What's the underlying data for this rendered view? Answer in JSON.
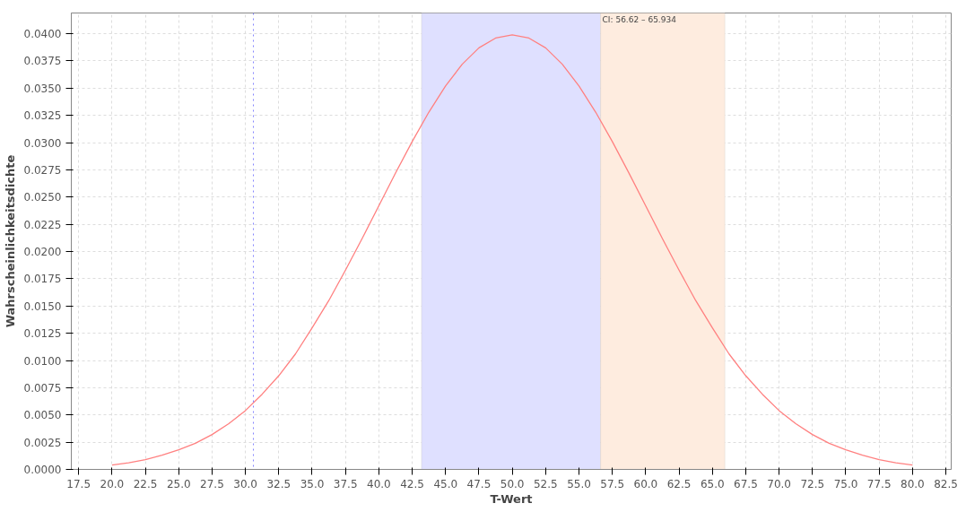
{
  "chart_data": {
    "type": "line",
    "xlabel": "T-Wert",
    "ylabel": "Wahrscheinlichkeitsdichte",
    "x": [
      20,
      21.25,
      22.5,
      23.75,
      25,
      26.25,
      27.5,
      28.75,
      30,
      31.25,
      32.5,
      33.75,
      35,
      36.25,
      37.5,
      38.75,
      40,
      41.25,
      42.5,
      43.75,
      45,
      46.25,
      47.5,
      48.75,
      50,
      51.25,
      52.5,
      53.75,
      55,
      56.25,
      57.5,
      58.75,
      60,
      61.25,
      62.5,
      63.75,
      65,
      66.25,
      67.5,
      68.75,
      70,
      71.25,
      72.5,
      73.75,
      75,
      76.25,
      77.5,
      78.75,
      80
    ],
    "series": [
      {
        "color": "#ff8080",
        "values": [
          0.0004,
          0.0006,
          0.0009,
          0.0013,
          0.0018,
          0.0024,
          0.0032,
          0.0042,
          0.0054,
          0.0069,
          0.0086,
          0.0106,
          0.013,
          0.0155,
          0.0183,
          0.0212,
          0.0242,
          0.0272,
          0.0301,
          0.0328,
          0.0352,
          0.0372,
          0.0387,
          0.0396,
          0.0399,
          0.0396,
          0.0387,
          0.0372,
          0.0352,
          0.0328,
          0.0301,
          0.0272,
          0.0242,
          0.0212,
          0.0183,
          0.0155,
          0.013,
          0.0106,
          0.0086,
          0.0069,
          0.0054,
          0.0042,
          0.0032,
          0.0024,
          0.0018,
          0.0013,
          0.0009,
          0.0006,
          0.0004
        ]
      }
    ],
    "xlim": [
      16.95,
      82.9
    ],
    "ylim": [
      0,
      0.0419
    ],
    "xticks": [
      {
        "value": 17.5,
        "label": "17.5"
      },
      {
        "value": 20,
        "label": "20.0"
      },
      {
        "value": 22.5,
        "label": "22.5"
      },
      {
        "value": 25,
        "label": "25.0"
      },
      {
        "value": 27.5,
        "label": "27.5"
      },
      {
        "value": 30,
        "label": "30.0"
      },
      {
        "value": 32.5,
        "label": "32.5"
      },
      {
        "value": 35,
        "label": "35.0"
      },
      {
        "value": 37.5,
        "label": "37.5"
      },
      {
        "value": 40,
        "label": "40.0"
      },
      {
        "value": 42.5,
        "label": "42.5"
      },
      {
        "value": 45,
        "label": "45.0"
      },
      {
        "value": 47.5,
        "label": "47.5"
      },
      {
        "value": 50,
        "label": "50.0"
      },
      {
        "value": 52.5,
        "label": "52.5"
      },
      {
        "value": 55,
        "label": "55.0"
      },
      {
        "value": 57.5,
        "label": "57.5"
      },
      {
        "value": 60,
        "label": "60.0"
      },
      {
        "value": 62.5,
        "label": "62.5"
      },
      {
        "value": 65,
        "label": "65.0"
      },
      {
        "value": 67.5,
        "label": "67.5"
      },
      {
        "value": 70,
        "label": "70.0"
      },
      {
        "value": 72.5,
        "label": "72.5"
      },
      {
        "value": 75,
        "label": "75.0"
      },
      {
        "value": 77.5,
        "label": "77.5"
      },
      {
        "value": 80,
        "label": "80.0"
      },
      {
        "value": 82.5,
        "label": "82.5"
      }
    ],
    "yticks": [
      {
        "value": 0,
        "label": "0.0000"
      },
      {
        "value": 0.0025,
        "label": "0.0025"
      },
      {
        "value": 0.005,
        "label": "0.0050"
      },
      {
        "value": 0.0075,
        "label": "0.0075"
      },
      {
        "value": 0.01,
        "label": "0.0100"
      },
      {
        "value": 0.0125,
        "label": "0.0125"
      },
      {
        "value": 0.015,
        "label": "0.0150"
      },
      {
        "value": 0.0175,
        "label": "0.0175"
      },
      {
        "value": 0.02,
        "label": "0.0200"
      },
      {
        "value": 0.0225,
        "label": "0.0225"
      },
      {
        "value": 0.025,
        "label": "0.0250"
      },
      {
        "value": 0.0275,
        "label": "0.0275"
      },
      {
        "value": 0.03,
        "label": "0.0300"
      },
      {
        "value": 0.0325,
        "label": "0.0325"
      },
      {
        "value": 0.035,
        "label": "0.0350"
      },
      {
        "value": 0.0375,
        "label": "0.0375"
      },
      {
        "value": 0.04,
        "label": "0.0400"
      }
    ],
    "bands": [
      {
        "axis": "x",
        "from": 43.2,
        "to": 56.62,
        "color": "#dfe0ff"
      },
      {
        "axis": "x",
        "from": 56.62,
        "to": 65.934,
        "color": "#feecdf",
        "label": "CI: 56.62 – 65.934"
      }
    ],
    "ref_lines": [
      {
        "axis": "x",
        "value": 30.6,
        "color": "#8080ff",
        "line_style": "dotted"
      }
    ],
    "grid": true,
    "marker": "none",
    "line_style": "solid"
  }
}
